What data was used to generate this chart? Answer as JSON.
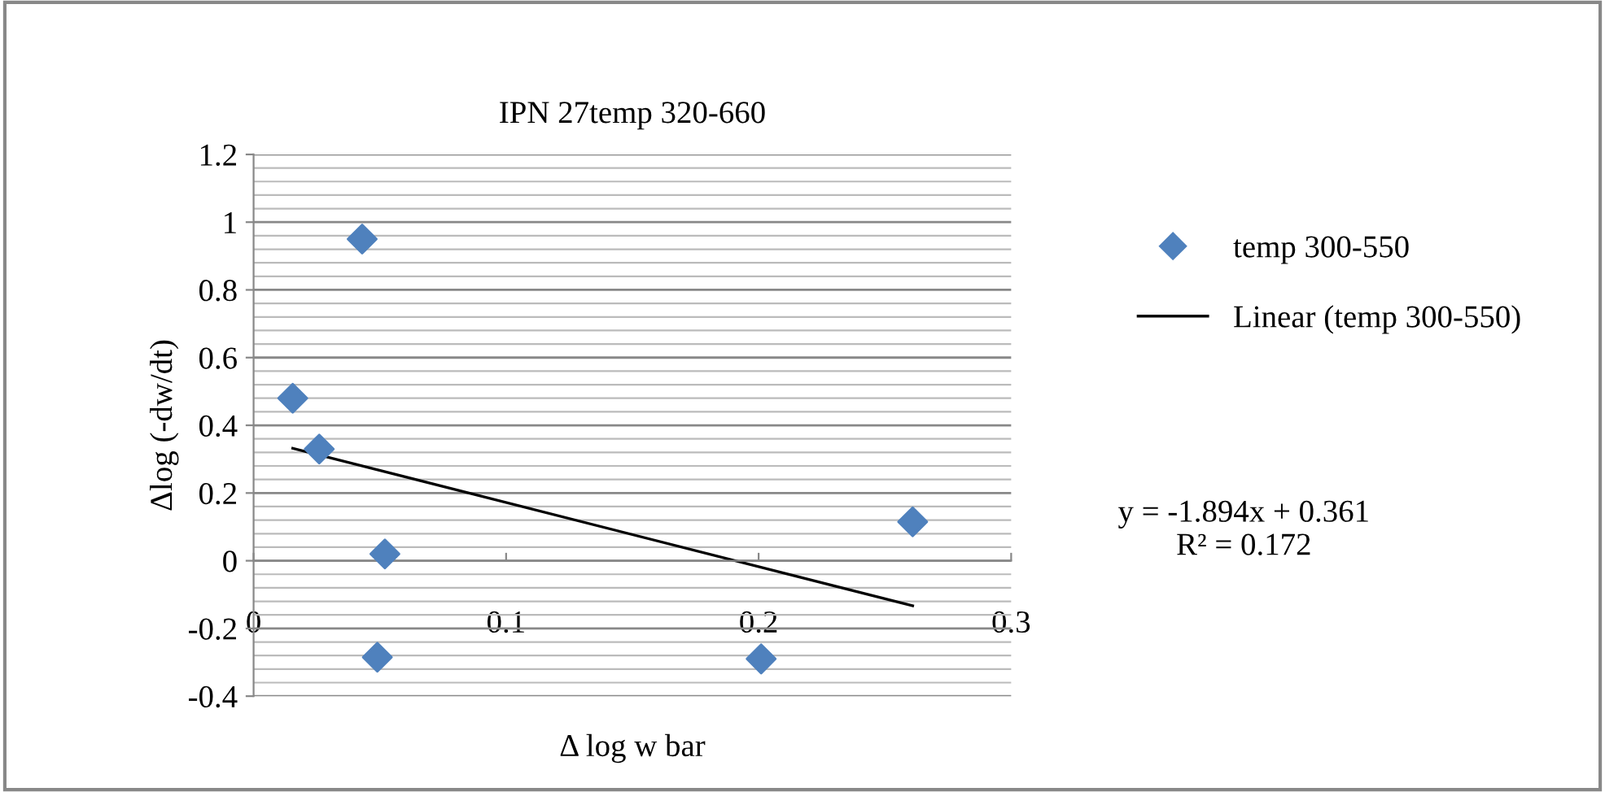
{
  "chart_data": {
    "type": "scatter",
    "title": "IPN 27temp 320-660",
    "xlabel": "Δ log w bar",
    "ylabel": "Δlog (-dw/dt)",
    "series": [
      {
        "name": "temp 300-550",
        "color": "#4f81bd",
        "marker": "diamond",
        "x": [
          0.0155,
          0.026,
          0.043,
          0.052,
          0.049,
          0.201,
          0.261
        ],
        "values": [
          0.48,
          0.33,
          0.95,
          0.02,
          -0.285,
          -0.29,
          0.115
        ]
      },
      {
        "name": "Linear (temp 300-550)",
        "type": "line",
        "color": "#000000",
        "marker": "none",
        "line_style": "solid",
        "x": [
          0.0155,
          0.261
        ],
        "values": [
          0.332,
          -0.133
        ]
      }
    ],
    "xlim": [
      0,
      0.3
    ],
    "xticks": [
      0,
      0.1,
      0.2,
      0.3
    ],
    "ylim": [
      -0.4,
      1.2
    ],
    "yticks": [
      -0.4,
      -0.2,
      0,
      0.2,
      0.4,
      0.6,
      0.8,
      1,
      1.2
    ],
    "grid": "y",
    "legend": "right",
    "annotations": [
      "y = -1.894x + 0.361\nR² = 0.172"
    ]
  }
}
